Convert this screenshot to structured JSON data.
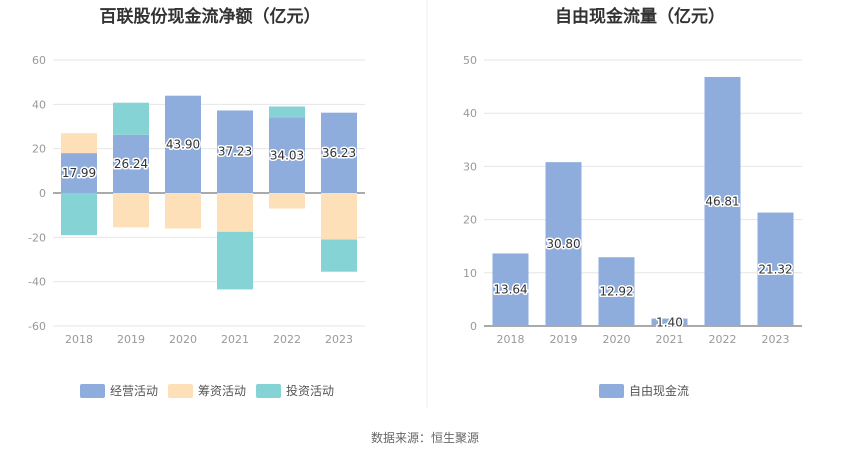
{
  "source": "数据来源：恒生聚源",
  "colors": {
    "operating": "#8eacdc",
    "financing": "#fde0b7",
    "investing": "#86d3d6",
    "fcf": "#8eacdc"
  },
  "chart_data": [
    {
      "type": "bar",
      "stacked": true,
      "title": "百联股份现金流净额（亿元）",
      "categories": [
        "2018",
        "2019",
        "2020",
        "2021",
        "2022",
        "2023"
      ],
      "ylim": [
        -60,
        60
      ],
      "yticks": [
        60,
        40,
        20,
        0,
        -20,
        -40,
        -60
      ],
      "grid": true,
      "legend_position": "bottom",
      "series": [
        {
          "name": "经营活动",
          "values": [
            17.99,
            26.24,
            43.9,
            37.23,
            34.03,
            36.23
          ],
          "labels": [
            "17.99",
            "26.24",
            "43.90",
            "37.23",
            "34.03",
            "36.23"
          ]
        },
        {
          "name": "筹资活动",
          "values": [
            9.0,
            -15.5,
            -16.0,
            -17.5,
            -7.0,
            -21.0
          ]
        },
        {
          "name": "投资活动",
          "values": [
            -19.0,
            14.5,
            0,
            -26.0,
            5.0,
            -14.5
          ]
        }
      ]
    },
    {
      "type": "bar",
      "title": "自由现金流量（亿元）",
      "categories": [
        "2018",
        "2019",
        "2020",
        "2021",
        "2022",
        "2023"
      ],
      "ylim": [
        0,
        50
      ],
      "yticks": [
        50,
        40,
        30,
        20,
        10,
        0
      ],
      "grid": true,
      "legend_position": "bottom",
      "series": [
        {
          "name": "自由现金流",
          "values": [
            13.64,
            30.8,
            12.92,
            1.4,
            46.81,
            21.32
          ],
          "labels": [
            "13.64",
            "30.80",
            "12.92",
            "1.40",
            "46.81",
            "21.32"
          ]
        }
      ]
    }
  ]
}
